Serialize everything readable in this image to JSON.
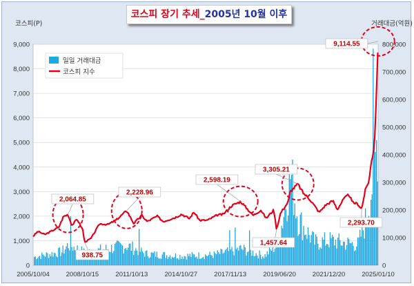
{
  "title": {
    "part1": "코스피 장기 추세_",
    "part2": "2005년 10월 이후"
  },
  "colors": {
    "line": "#e3001b",
    "bars": "#1fa8df",
    "circle": "#e3001b",
    "background": "#dfe7f2"
  },
  "chart_data": {
    "type": "line",
    "title": "코스피 장기 추세_2005년 10월 이후",
    "ylabel": "코스피(P)",
    "y2label": "거래대금(억원)",
    "ylim": [
      0,
      9000
    ],
    "y2lim": [
      0,
      800000
    ],
    "y_ticks": [
      "0",
      "1,000",
      "2,000",
      "3,000",
      "4,000",
      "5,000",
      "6,000",
      "7,000",
      "8,000",
      "9,000"
    ],
    "y2_ticks": [
      "0",
      "100,000",
      "200,000",
      "300,000",
      "400,000",
      "500,000",
      "600,000",
      "700,000",
      "800,000"
    ],
    "x_ticks": [
      "2005/10/04",
      "2008/10/15",
      "2011/10/13",
      "2014/10/27",
      "2017/11/13",
      "2019/06/20",
      "2021/12/20",
      "2025/01/10"
    ],
    "x_range": [
      "2005/10/04",
      "2026/03/31"
    ],
    "grid": true,
    "legend_position": "top-left",
    "series": [
      {
        "name": "코스피 지수",
        "axis": "left",
        "points": [
          [
            "2005/10/04",
            1180
          ],
          [
            "2006/01/15",
            1380
          ],
          [
            "2006/06/15",
            1250
          ],
          [
            "2006/12/15",
            1430
          ],
          [
            "2007/04/15",
            1550
          ],
          [
            "2007/07/25",
            1990
          ],
          [
            "2007/10/31",
            2064.85
          ],
          [
            "2008/01/22",
            1620
          ],
          [
            "2008/05/15",
            1880
          ],
          [
            "2008/09/15",
            1450
          ],
          [
            "2008/10/24",
            938.75
          ],
          [
            "2009/03/15",
            1100
          ],
          [
            "2009/09/15",
            1690
          ],
          [
            "2010/03/15",
            1660
          ],
          [
            "2010/09/15",
            1850
          ],
          [
            "2011/04/27",
            2228.96
          ],
          [
            "2011/09/26",
            1700
          ],
          [
            "2012/03/15",
            2030
          ],
          [
            "2012/07/15",
            1780
          ],
          [
            "2013/02/15",
            2000
          ],
          [
            "2013/06/25",
            1780
          ],
          [
            "2014/03/15",
            1950
          ],
          [
            "2014/07/30",
            2080
          ],
          [
            "2015/01/15",
            1900
          ],
          [
            "2015/04/23",
            2170
          ],
          [
            "2015/08/24",
            1830
          ],
          [
            "2016/02/12",
            1835
          ],
          [
            "2016/09/15",
            2050
          ],
          [
            "2017/01/15",
            2070
          ],
          [
            "2017/07/15",
            2420
          ],
          [
            "2018/01/29",
            2598.19
          ],
          [
            "2018/10/29",
            2030
          ],
          [
            "2019/04/15",
            2250
          ],
          [
            "2019/08/06",
            1910
          ],
          [
            "2020/01/20",
            2260
          ],
          [
            "2020/03/19",
            1457.64
          ],
          [
            "2020/06/15",
            2130
          ],
          [
            "2020/11/30",
            2590
          ],
          [
            "2021/01/07",
            3000
          ],
          [
            "2021/06/25",
            3305.21
          ],
          [
            "2021/10/15",
            2950
          ],
          [
            "2022/03/15",
            2680
          ],
          [
            "2022/09/30",
            2155
          ],
          [
            "2023/02/15",
            2450
          ],
          [
            "2023/07/25",
            2630
          ],
          [
            "2023/10/30",
            2280
          ],
          [
            "2024/03/15",
            2700
          ],
          [
            "2024/07/11",
            2890
          ],
          [
            "2024/09/15",
            2560
          ],
          [
            "2025/01/10",
            2500
          ],
          [
            "2025/04/09",
            2293.7
          ],
          [
            "2025/06/20",
            3020
          ],
          [
            "2025/09/15",
            3450
          ],
          [
            "2025/11/03",
            4200
          ],
          [
            "2025/12/15",
            4600
          ],
          [
            "2026/01/15",
            5200
          ],
          [
            "2026/02/10",
            6400
          ],
          [
            "2026/03/05",
            7600
          ],
          [
            "2026/03/20",
            8500
          ],
          [
            "2026/03/27",
            9114.55
          ]
        ]
      },
      {
        "name": "일일 거래대금",
        "axis": "right",
        "type": "bar",
        "points": [
          [
            "2005/10/04",
            40000
          ],
          [
            "2007/06/15",
            65000
          ],
          [
            "2007/10/31",
            100000
          ],
          [
            "2008/10/24",
            60000
          ],
          [
            "2009/06/15",
            70000
          ],
          [
            "2011/04/27",
            95000
          ],
          [
            "2012/06/15",
            55000
          ],
          [
            "2014/06/15",
            45000
          ],
          [
            "2016/06/15",
            50000
          ],
          [
            "2018/01/29",
            80000
          ],
          [
            "2019/06/20",
            45000
          ],
          [
            "2020/03/19",
            100000
          ],
          [
            "2020/06/15",
            180000
          ],
          [
            "2021/01/11",
            440000
          ],
          [
            "2021/06/25",
            220000
          ],
          [
            "2022/06/15",
            110000
          ],
          [
            "2023/06/15",
            120000
          ],
          [
            "2024/01/15",
            110000
          ],
          [
            "2025/01/10",
            100000
          ],
          [
            "2025/06/20",
            210000
          ],
          [
            "2025/11/03",
            380000
          ],
          [
            "2026/01/15",
            480000
          ],
          [
            "2026/03/05",
            650000
          ],
          [
            "2026/03/27",
            560000
          ]
        ]
      }
    ],
    "annotations": [
      {
        "label": "2,064.85",
        "date": "2007/10/31",
        "value": 2064.85,
        "circled": true
      },
      {
        "label": "938.75",
        "date": "2008/10/24",
        "value": 938.75,
        "circled": false
      },
      {
        "label": "2,228.96",
        "date": "2011/04/27",
        "value": 2228.96,
        "circled": true
      },
      {
        "label": "2,598.19",
        "date": "2018/01/29",
        "value": 2598.19,
        "circled": true
      },
      {
        "label": "1,457.64",
        "date": "2020/03/19",
        "value": 1457.64,
        "circled": false
      },
      {
        "label": "3,305.21",
        "date": "2021/06/25",
        "value": 3305.21,
        "circled": true
      },
      {
        "label": "2,293.70",
        "date": "2025/04/09",
        "value": 2293.7,
        "circled": false
      },
      {
        "label": "9,114.55",
        "date": "2026/03/27",
        "value": 9114.55,
        "circled": true
      }
    ]
  }
}
